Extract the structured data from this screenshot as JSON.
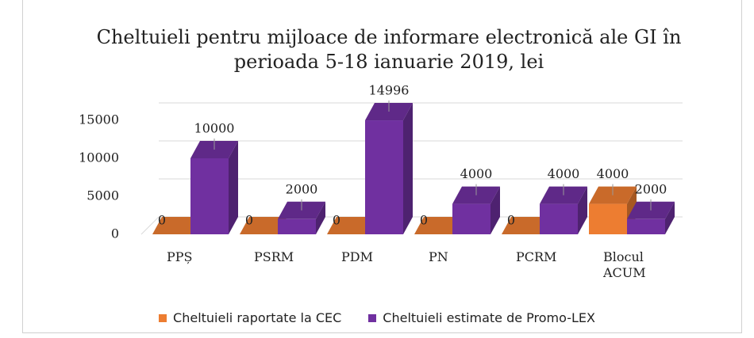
{
  "chart_data": {
    "type": "bar3d",
    "title": "Cheltuieli pentru mijloace de informare electronică ale GI în perioada 5-18 ianuarie 2019, lei",
    "categories": [
      "PPȘ",
      "PSRM",
      "PDM",
      "PN",
      "PCRM",
      "Blocul ACUM"
    ],
    "series": [
      {
        "name": "Cheltuieli raportate la CEC",
        "color": "#ed7d31",
        "values": [
          0,
          0,
          0,
          0,
          0,
          4000
        ]
      },
      {
        "name": "Cheltuieli estimate de Promo-LEX",
        "color": "#7030a0",
        "values": [
          10000,
          2000,
          14996,
          4000,
          4000,
          2000
        ]
      }
    ],
    "ylim": [
      0,
      15000
    ],
    "yticks": [
      0,
      5000,
      10000,
      15000
    ],
    "grid": true,
    "legend": "bottom"
  }
}
